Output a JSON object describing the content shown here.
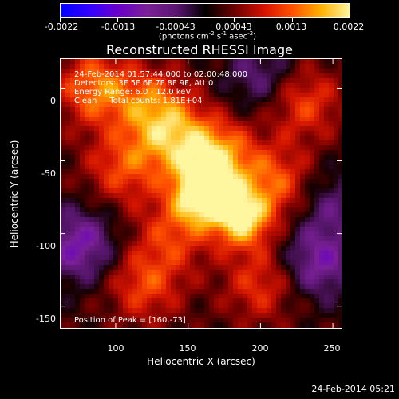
{
  "chart_data": {
    "type": "heatmap",
    "title": "Reconstructed RHESSI Image",
    "xlabel": "Heliocentric X (arcsec)",
    "ylabel": "Heliocentric Y (arcsec)",
    "xlim": [
      62,
      256
    ],
    "ylim": [
      -165,
      20
    ],
    "x_ticks": [
      100,
      150,
      200,
      250
    ],
    "y_ticks": [
      0,
      -50,
      -100,
      -150
    ],
    "colorbar": {
      "min": -0.0022,
      "max": 0.0022,
      "tick_labels": [
        "-0.0022",
        "-0.0013",
        "-0.00043",
        "0.00043",
        "0.0013",
        "0.0022"
      ],
      "unit": "(photons cm",
      "unit_exp1": "-2",
      "unit_mid": " s",
      "unit_exp2": "-1",
      "unit_end": " asec",
      "unit_exp3": "-2",
      "unit_close": ")"
    },
    "annotations": {
      "time": "24-Feb-2014 01:57:44.000 to 02:00:48.000",
      "detectors": "Detectors: 3F 5F 6F 7F 8F 9F, Att 0",
      "energy": "Energy Range: 6.0 - 12.0 keV",
      "clean": "Clean     Total counts: 1.81E+04",
      "peak": "Position of Peak = [160,-73]"
    },
    "peak": {
      "x": 160,
      "y": -73
    },
    "bright_sources": [
      {
        "x": 160,
        "y": -73,
        "intensity": 1.0
      },
      {
        "x": 187,
        "y": -90,
        "intensity": 0.85
      },
      {
        "x": 170,
        "y": -47,
        "intensity": 0.7
      },
      {
        "x": 140,
        "y": -35,
        "intensity": 0.55
      },
      {
        "x": 125,
        "y": -12,
        "intensity": 0.5
      },
      {
        "x": 86,
        "y": 0,
        "intensity": 0.6
      },
      {
        "x": 105,
        "y": -55,
        "intensity": 0.45
      },
      {
        "x": 140,
        "y": -100,
        "intensity": 0.4
      },
      {
        "x": 120,
        "y": -135,
        "intensity": 0.45
      },
      {
        "x": 200,
        "y": -135,
        "intensity": 0.4
      },
      {
        "x": 230,
        "y": -10,
        "intensity": 0.45
      },
      {
        "x": 210,
        "y": -65,
        "intensity": 0.5
      }
    ],
    "dim_regions": [
      {
        "x": 75,
        "y": -108,
        "intensity": -0.55
      },
      {
        "x": 240,
        "y": -120,
        "intensity": -0.5
      },
      {
        "x": 200,
        "y": 8,
        "intensity": -0.35
      },
      {
        "x": 250,
        "y": -80,
        "intensity": -0.3
      }
    ]
  },
  "footer_stamp": "24-Feb-2014 05:21"
}
